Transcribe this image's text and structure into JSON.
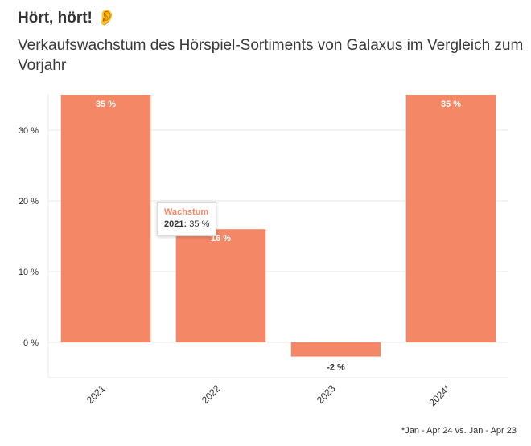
{
  "header": {
    "title": "Hört, hört!",
    "icon": "ear-icon",
    "subtitle": "Verkaufswachstum des Hörspiel-Sortiments von Galaxus im Vergleich zum Vorjahr"
  },
  "footnote": "*Jan - Apr 24 vs. Jan - Apr 23",
  "tooltip": {
    "series": "Wachstum",
    "category": "2021:",
    "value": "35 %"
  },
  "colors": {
    "bar": "#f48766",
    "grid": "#e8e8e8",
    "text": "#333333"
  },
  "chart_data": {
    "type": "bar",
    "title": "Verkaufswachstum des Hörspiel-Sortiments von Galaxus im Vergleich zum Vorjahr",
    "categories": [
      "2021",
      "2022",
      "2023",
      "2024*"
    ],
    "series": [
      {
        "name": "Wachstum",
        "values": [
          35,
          16,
          -2,
          35
        ]
      }
    ],
    "data_labels": [
      "35 %",
      "16 %",
      "-2 %",
      "35 %"
    ],
    "yticks": [
      0,
      10,
      20,
      30
    ],
    "ytick_labels": [
      "0 %",
      "10 %",
      "20 %",
      "30 %"
    ],
    "ylim": [
      -5,
      35
    ],
    "grid": true,
    "legend": "none"
  }
}
